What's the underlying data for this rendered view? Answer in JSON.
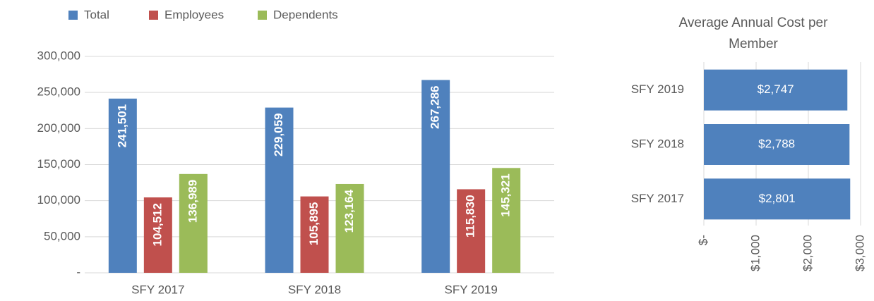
{
  "chart_data": [
    {
      "type": "bar",
      "categories": [
        "SFY 2017",
        "SFY 2018",
        "SFY 2019"
      ],
      "series": [
        {
          "name": "Total",
          "color": "#4f81bd",
          "values": [
            241501,
            229059,
            267286
          ],
          "value_labels": [
            "241,501",
            "229,059",
            "267,286"
          ]
        },
        {
          "name": "Employees",
          "color": "#c0504d",
          "values": [
            104512,
            105895,
            115830
          ],
          "value_labels": [
            "104,512",
            "105,895",
            "115,830"
          ]
        },
        {
          "name": "Dependents",
          "color": "#9bbb59",
          "values": [
            136989,
            123164,
            145321
          ],
          "value_labels": [
            "136,989",
            "123,164",
            "145,321"
          ]
        }
      ],
      "ylim": [
        0,
        300000
      ],
      "yticks": [
        {
          "value": 0,
          "label": "-"
        },
        {
          "value": 50000,
          "label": "50,000"
        },
        {
          "value": 100000,
          "label": "100,000"
        },
        {
          "value": 150000,
          "label": "150,000"
        },
        {
          "value": 200000,
          "label": "200,000"
        },
        {
          "value": 250000,
          "label": "250,000"
        },
        {
          "value": 300000,
          "label": "300,000"
        }
      ],
      "grid": true,
      "legend": "top"
    },
    {
      "type": "hbar",
      "title": "Average Annual Cost per Member",
      "categories": [
        "SFY 2019",
        "SFY 2018",
        "SFY 2017"
      ],
      "values": [
        2747,
        2788,
        2801
      ],
      "value_labels": [
        "$2,747",
        "$2,788",
        "$2,801"
      ],
      "color": "#4f81bd",
      "xlim": [
        0,
        3000
      ],
      "xticks": [
        {
          "value": 0,
          "label": "$-"
        },
        {
          "value": 1000,
          "label": "$1,000"
        },
        {
          "value": 2000,
          "label": "$2,000"
        },
        {
          "value": 3000,
          "label": "$3,000"
        }
      ],
      "grid": true
    }
  ]
}
